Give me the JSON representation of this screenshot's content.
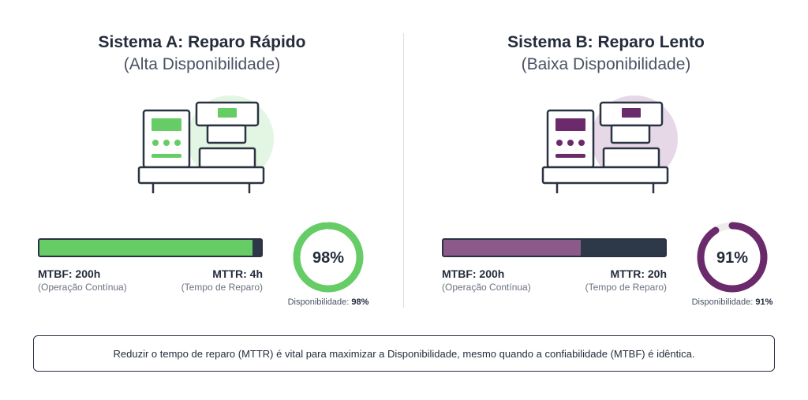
{
  "colors": {
    "dark": "#2a3342",
    "green": "#66cc66",
    "green_light": "#e3f6e3",
    "purple": "#6b2a6b",
    "purple_bar": "#8b5a8b",
    "purple_light": "#e6d8e6"
  },
  "systems": [
    {
      "title": "Sistema A: Reparo Rápido",
      "subtitle": "(Alta Disponibilidade)",
      "accent": "#66cc66",
      "bar_color": "#66cc66",
      "halo": "#e3f6e3",
      "uptime_fraction": 0.96,
      "mtbf_label": "MTBF: 200h",
      "mtbf_sub": "(Operação Contínua)",
      "mttr_label": "MTTR: 4h",
      "mttr_sub": "(Tempo de Reparo)",
      "availability_value": 98,
      "availability_text": "98%",
      "availability_caption": "Disponibilidade:",
      "availability_caption_value": "98%"
    },
    {
      "title": "Sistema B: Reparo Lento",
      "subtitle": "(Baixa Disponibilidade)",
      "accent": "#6b2a6b",
      "bar_color": "#8b5a8b",
      "halo": "#e6d8e6",
      "uptime_fraction": 0.62,
      "mtbf_label": "MTBF: 200h",
      "mtbf_sub": "(Operação Contínua)",
      "mttr_label": "MTTR: 20h",
      "mttr_sub": "(Tempo de Reparo)",
      "availability_value": 91,
      "availability_text": "91%",
      "availability_caption": "Disponibilidade:",
      "availability_caption_value": "91%"
    }
  ],
  "conclusion": "Reduzir o tempo de reparo (MTTR) é vital para maximizar a Disponibilidade, mesmo quando a confiabilidade (MTBF) é idêntica."
}
